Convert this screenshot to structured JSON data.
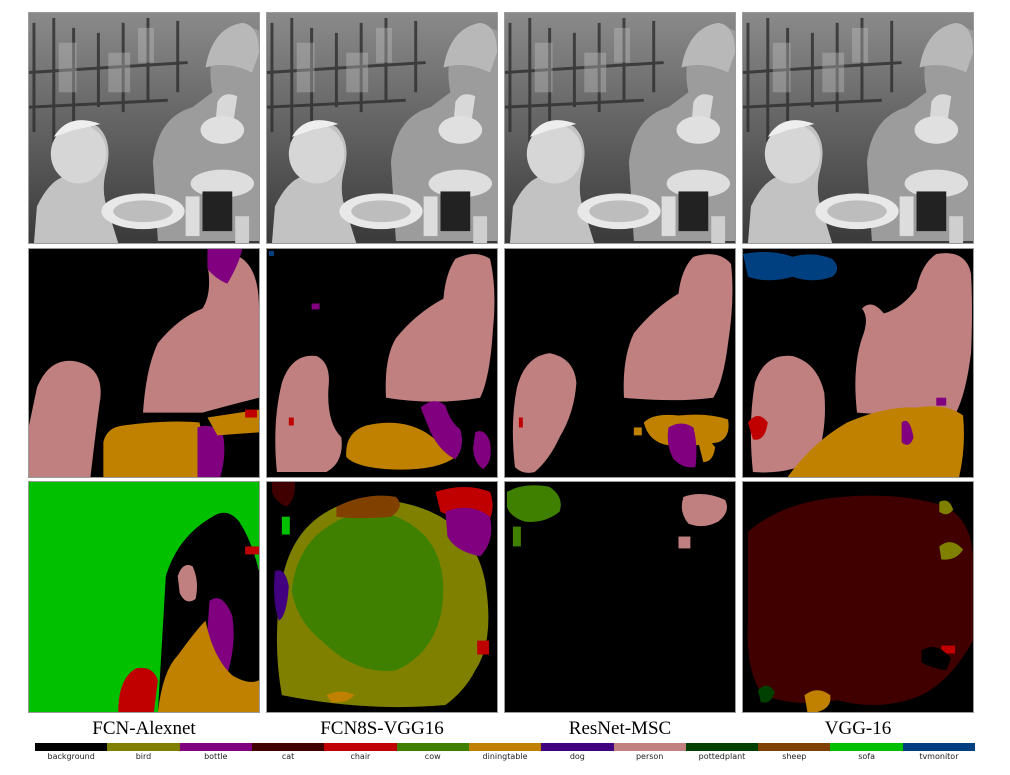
{
  "columns": [
    {
      "caption": "FCN-Alexnet"
    },
    {
      "caption": "FCN8S-VGG16"
    },
    {
      "caption": "ResNet-MSC"
    },
    {
      "caption": "VGG-16"
    }
  ],
  "rows": [
    {
      "kind": "photograph",
      "content": "grayscale-restaurant-boy-and-man"
    },
    {
      "kind": "segmentation",
      "content": "clean-image-prediction"
    },
    {
      "kind": "segmentation",
      "content": "perturbed-image-prediction"
    }
  ],
  "legend": [
    {
      "label": "background",
      "color": "#000000"
    },
    {
      "label": "bird",
      "color": "#808000"
    },
    {
      "label": "bottle",
      "color": "#800080"
    },
    {
      "label": "cat",
      "color": "#400000"
    },
    {
      "label": "chair",
      "color": "#c00000"
    },
    {
      "label": "cow",
      "color": "#408000"
    },
    {
      "label": "diningtable",
      "color": "#c08000"
    },
    {
      "label": "dog",
      "color": "#400080"
    },
    {
      "label": "person",
      "color": "#c08080"
    },
    {
      "label": "pottedplant",
      "color": "#004000"
    },
    {
      "label": "sheep",
      "color": "#804000"
    },
    {
      "label": "sofa",
      "color": "#00c000"
    },
    {
      "label": "tvmonitor",
      "color": "#004080"
    }
  ]
}
